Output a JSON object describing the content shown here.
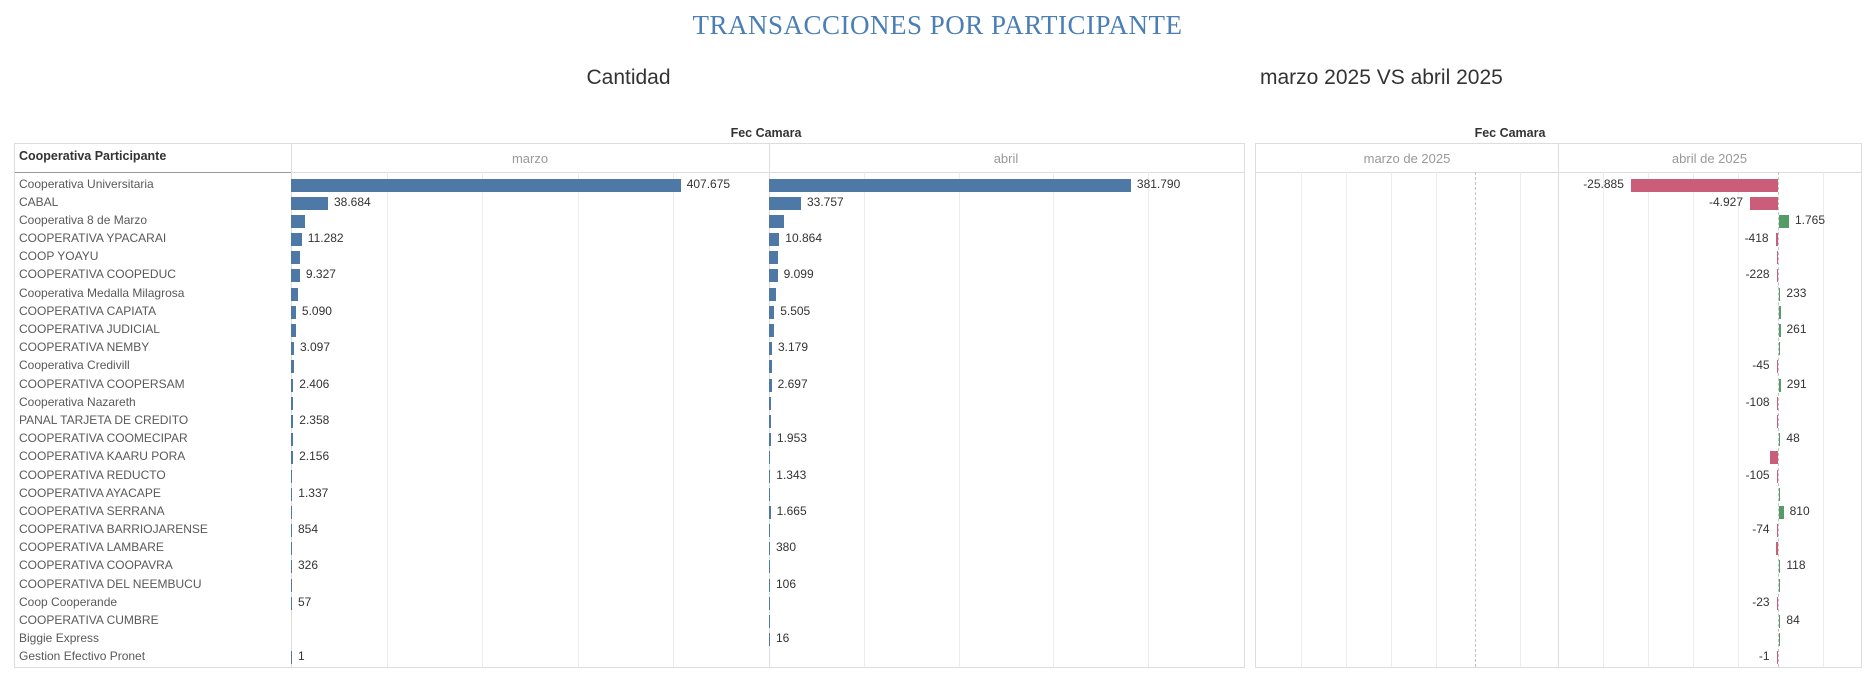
{
  "title": "TRANSACCIONES POR PARTICIPANTE",
  "colors": {
    "title_blue": "#4a7eb5",
    "bar_blue": "#4e79a7",
    "bar_red": "#c95d7a",
    "bar_green": "#559b66"
  },
  "left_panel": {
    "title": "Cantidad",
    "axis_group_label": "Fec Camara",
    "row_header": "Cooperativa Participante",
    "col_marzo": "marzo",
    "col_abril": "abril"
  },
  "right_panel": {
    "title": "marzo 2025 VS abril 2025",
    "axis_group_label": "Fec Camara",
    "col_marzo": "marzo de 2025",
    "col_abril": "abril de 2025"
  },
  "chart_data": {
    "type": "bar",
    "title": "TRANSACCIONES POR PARTICIPANTE",
    "subtitles": [
      "Cantidad",
      "marzo 2025 VS abril 2025"
    ],
    "xlabel": "Fec Camara",
    "ylabel": "Cooperativa Participante",
    "count_axis_range": [
      0,
      500000
    ],
    "grid": true,
    "legend_position": "none",
    "categories": [
      "Cooperativa Universitaria",
      "CABAL",
      "Cooperativa 8 de Marzo",
      "COOPERATIVA YPACARAI",
      "COOP YOAYU",
      "COOPERATIVA COOPEDUC",
      "Cooperativa Medalla Milagrosa",
      "COOPERATIVA CAPIATA",
      "COOPERATIVA JUDICIAL",
      "COOPERATIVA NEMBY",
      "Cooperativa Credivill",
      "COOPERATIVA COOPERSAM",
      "Cooperativa Nazareth",
      "PANAL TARJETA DE CREDITO",
      "COOPERATIVA COOMECIPAR",
      "COOPERATIVA KAARU PORA",
      "COOPERATIVA REDUCTO",
      "COOPERATIVA AYACAPE",
      "COOPERATIVA SERRANA",
      "COOPERATIVA BARRIOJARENSE",
      "COOPERATIVA LAMBARE",
      "COOPERATIVA COOPAVRA",
      "COOPERATIVA DEL NEEMBUCU",
      "Coop Cooperande",
      "COOPERATIVA CUMBRE",
      "Biggie Express",
      "Gestion Efectivo Pronet"
    ],
    "series": [
      {
        "name": "marzo",
        "values": [
          407675,
          38684,
          14500,
          11282,
          9500,
          9327,
          7000,
          5090,
          5000,
          3097,
          2900,
          2406,
          2400,
          2358,
          1905,
          2156,
          1448,
          1337,
          855,
          854,
          780,
          326,
          90,
          57,
          0,
          0,
          1
        ],
        "labels": [
          "407.675",
          "38.684",
          "",
          "11.282",
          "",
          "9.327",
          "",
          "5.090",
          "",
          "3.097",
          "",
          "2.406",
          "",
          "2.358",
          "",
          "2.156",
          "",
          "1.337",
          "",
          "854",
          "",
          "326",
          "",
          "57",
          "",
          "",
          "1"
        ]
      },
      {
        "name": "abril",
        "values": [
          381790,
          33757,
          16265,
          10864,
          9400,
          9099,
          7233,
          5505,
          5261,
          3179,
          2855,
          2697,
          2292,
          2298,
          1953,
          800,
          1343,
          1343,
          1665,
          780,
          380,
          444,
          106,
          34,
          84,
          16,
          0
        ],
        "labels": [
          "381.790",
          "33.757",
          "",
          "10.864",
          "",
          "9.099",
          "",
          "5.505",
          "",
          "3.179",
          "",
          "2.697",
          "",
          "",
          "1.953",
          "",
          "1.343",
          "",
          "1.665",
          "",
          "380",
          "",
          "106",
          "",
          "",
          "16",
          ""
        ]
      },
      {
        "name": "diferencia abril de 2025",
        "values": [
          -25885,
          -4927,
          1765,
          -418,
          -100,
          -228,
          233,
          415,
          261,
          82,
          -45,
          291,
          -108,
          -60,
          48,
          -1356,
          -105,
          6,
          810,
          -74,
          -400,
          118,
          16,
          -23,
          84,
          16,
          -1
        ],
        "labels": [
          "-25.885",
          "-4.927",
          "1.765",
          "-418",
          "",
          "-228",
          "233",
          "",
          "261",
          "",
          "-45",
          "291",
          "-108",
          "",
          "48",
          "",
          "-105",
          "",
          "810",
          "-74",
          "",
          "118",
          "",
          "-23",
          "84",
          "",
          "-1"
        ]
      }
    ]
  }
}
